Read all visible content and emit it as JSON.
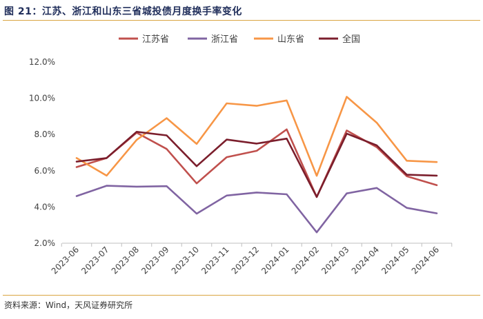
{
  "figure": {
    "title": "图 21：江苏、浙江和山东三省城投债月度换手率变化",
    "source": "资料来源：Wind，天风证券研究所"
  },
  "chart_data": {
    "type": "line",
    "title": "",
    "xlabel": "",
    "ylabel": "",
    "ylim": [
      0.02,
      0.12
    ],
    "yticks": [
      0.02,
      0.04,
      0.06,
      0.08,
      0.1,
      0.12
    ],
    "ytick_labels": [
      "2.0%",
      "4.0%",
      "6.0%",
      "8.0%",
      "10.0%",
      "12.0%"
    ],
    "grid": false,
    "legend_position": "top",
    "categories": [
      "2023-06",
      "2023-07",
      "2023-08",
      "2023-09",
      "2023-10",
      "2023-11",
      "2023-12",
      "2024-01",
      "2024-02",
      "2024-03",
      "2024-04",
      "2024-05",
      "2024-06"
    ],
    "series": [
      {
        "name": "江苏省",
        "color": "#c0504d",
        "values": [
          0.062,
          0.067,
          0.081,
          0.072,
          0.053,
          0.0675,
          0.071,
          0.0828,
          0.0455,
          0.0822,
          0.073,
          0.057,
          0.052
        ]
      },
      {
        "name": "浙江省",
        "color": "#8064a2",
        "values": [
          0.046,
          0.0517,
          0.0512,
          0.0515,
          0.0363,
          0.0463,
          0.048,
          0.047,
          0.026,
          0.0475,
          0.0505,
          0.0395,
          0.0365
        ]
      },
      {
        "name": "山东省",
        "color": "#f79646",
        "values": [
          0.067,
          0.0573,
          0.077,
          0.089,
          0.0748,
          0.0972,
          0.0958,
          0.0988,
          0.0572,
          0.1008,
          0.0865,
          0.0655,
          0.0648
        ]
      },
      {
        "name": "全国",
        "color": "#7b1e2c",
        "values": [
          0.065,
          0.067,
          0.0815,
          0.0795,
          0.0625,
          0.0772,
          0.075,
          0.0777,
          0.0455,
          0.0805,
          0.074,
          0.0578,
          0.0573
        ]
      }
    ]
  }
}
